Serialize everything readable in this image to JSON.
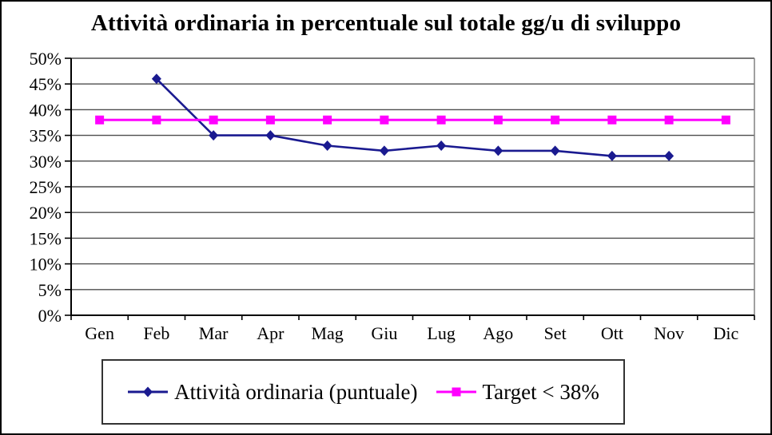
{
  "chart_data": {
    "type": "line",
    "title": "Attività ordinaria in percentuale sul totale gg/u di sviluppo",
    "categories": [
      "Gen",
      "Feb",
      "Mar",
      "Apr",
      "Mag",
      "Giu",
      "Lug",
      "Ago",
      "Set",
      "Ott",
      "Nov",
      "Dic"
    ],
    "series": [
      {
        "name": "Attività ordinaria (puntuale)",
        "color": "#1a1a90",
        "marker": "diamond",
        "values": [
          null,
          46,
          35,
          35,
          33,
          32,
          33,
          32,
          32,
          31,
          31,
          null
        ]
      },
      {
        "name": "Target < 38%",
        "color": "#ff00ff",
        "marker": "square",
        "values": [
          38,
          38,
          38,
          38,
          38,
          38,
          38,
          38,
          38,
          38,
          38,
          38
        ]
      }
    ],
    "ylim": [
      0,
      50
    ],
    "y_tick_step": 5,
    "y_tick_labels": [
      "0%",
      "5%",
      "10%",
      "15%",
      "20%",
      "25%",
      "30%",
      "35%",
      "40%",
      "45%",
      "50%"
    ],
    "xlabel": "",
    "ylabel": "",
    "grid": true,
    "legend_position": "bottom"
  },
  "colors": {
    "background": "#ffffff",
    "frame_border": "#000000",
    "gridline": "#4d4d4d",
    "axis": "#000000",
    "plot_right_border": "#808080"
  }
}
